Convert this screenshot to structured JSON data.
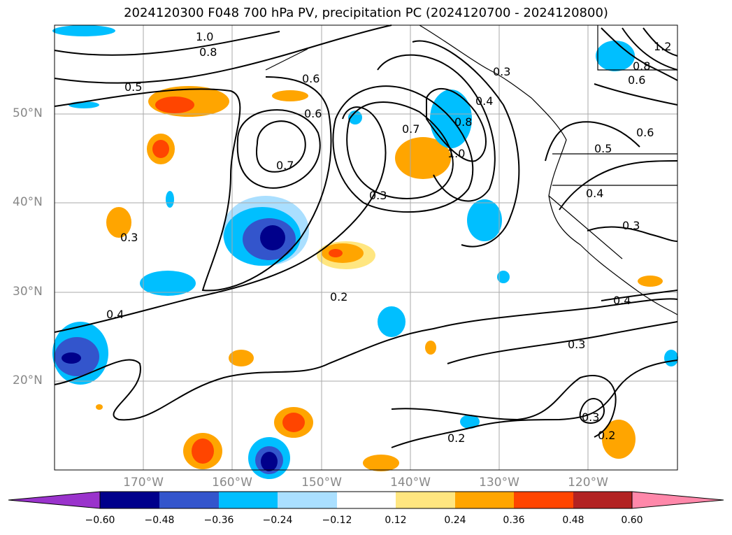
{
  "title": "2024120300 F048 700 hPa PV, precipitation PC (2024120700 - 2024120800)",
  "lat_labels": [
    "50°N",
    "40°N",
    "30°N",
    "20°N"
  ],
  "lon_labels": [
    "170°W",
    "160°W",
    "150°W",
    "140°W",
    "130°W",
    "120°W"
  ],
  "contour_labels": [
    "1.0",
    "0.8",
    "0.5",
    "0.6",
    "0.6",
    "0.7",
    "0.3",
    "0.7",
    "0.8",
    "1.0",
    "0.4",
    "0.3",
    "0.2",
    "0.4",
    "0.3",
    "0.2",
    "0.3",
    "0.2",
    "0.5",
    "0.4",
    "0.3",
    "0.4",
    "1.2",
    "0.8",
    "0.6",
    "0.6",
    "0.3"
  ],
  "colorbar": {
    "ticks": [
      "−0.60",
      "−0.48",
      "−0.36",
      "−0.24",
      "−0.12",
      "0.12",
      "0.24",
      "0.36",
      "0.48",
      "0.60"
    ],
    "colors": [
      "#9a33cc",
      "#00008b",
      "#3355cc",
      "#00bfff",
      "#aadfff",
      "#ffffff",
      "#ffe680",
      "#ffa500",
      "#ff4500",
      "#b22222",
      "#ff88aa"
    ]
  },
  "chart_data": {
    "type": "map",
    "extent": {
      "lon": [
        -180,
        -110
      ],
      "lat": [
        10,
        60
      ]
    },
    "grid": true,
    "colorbar_placement": "bottom"
  }
}
